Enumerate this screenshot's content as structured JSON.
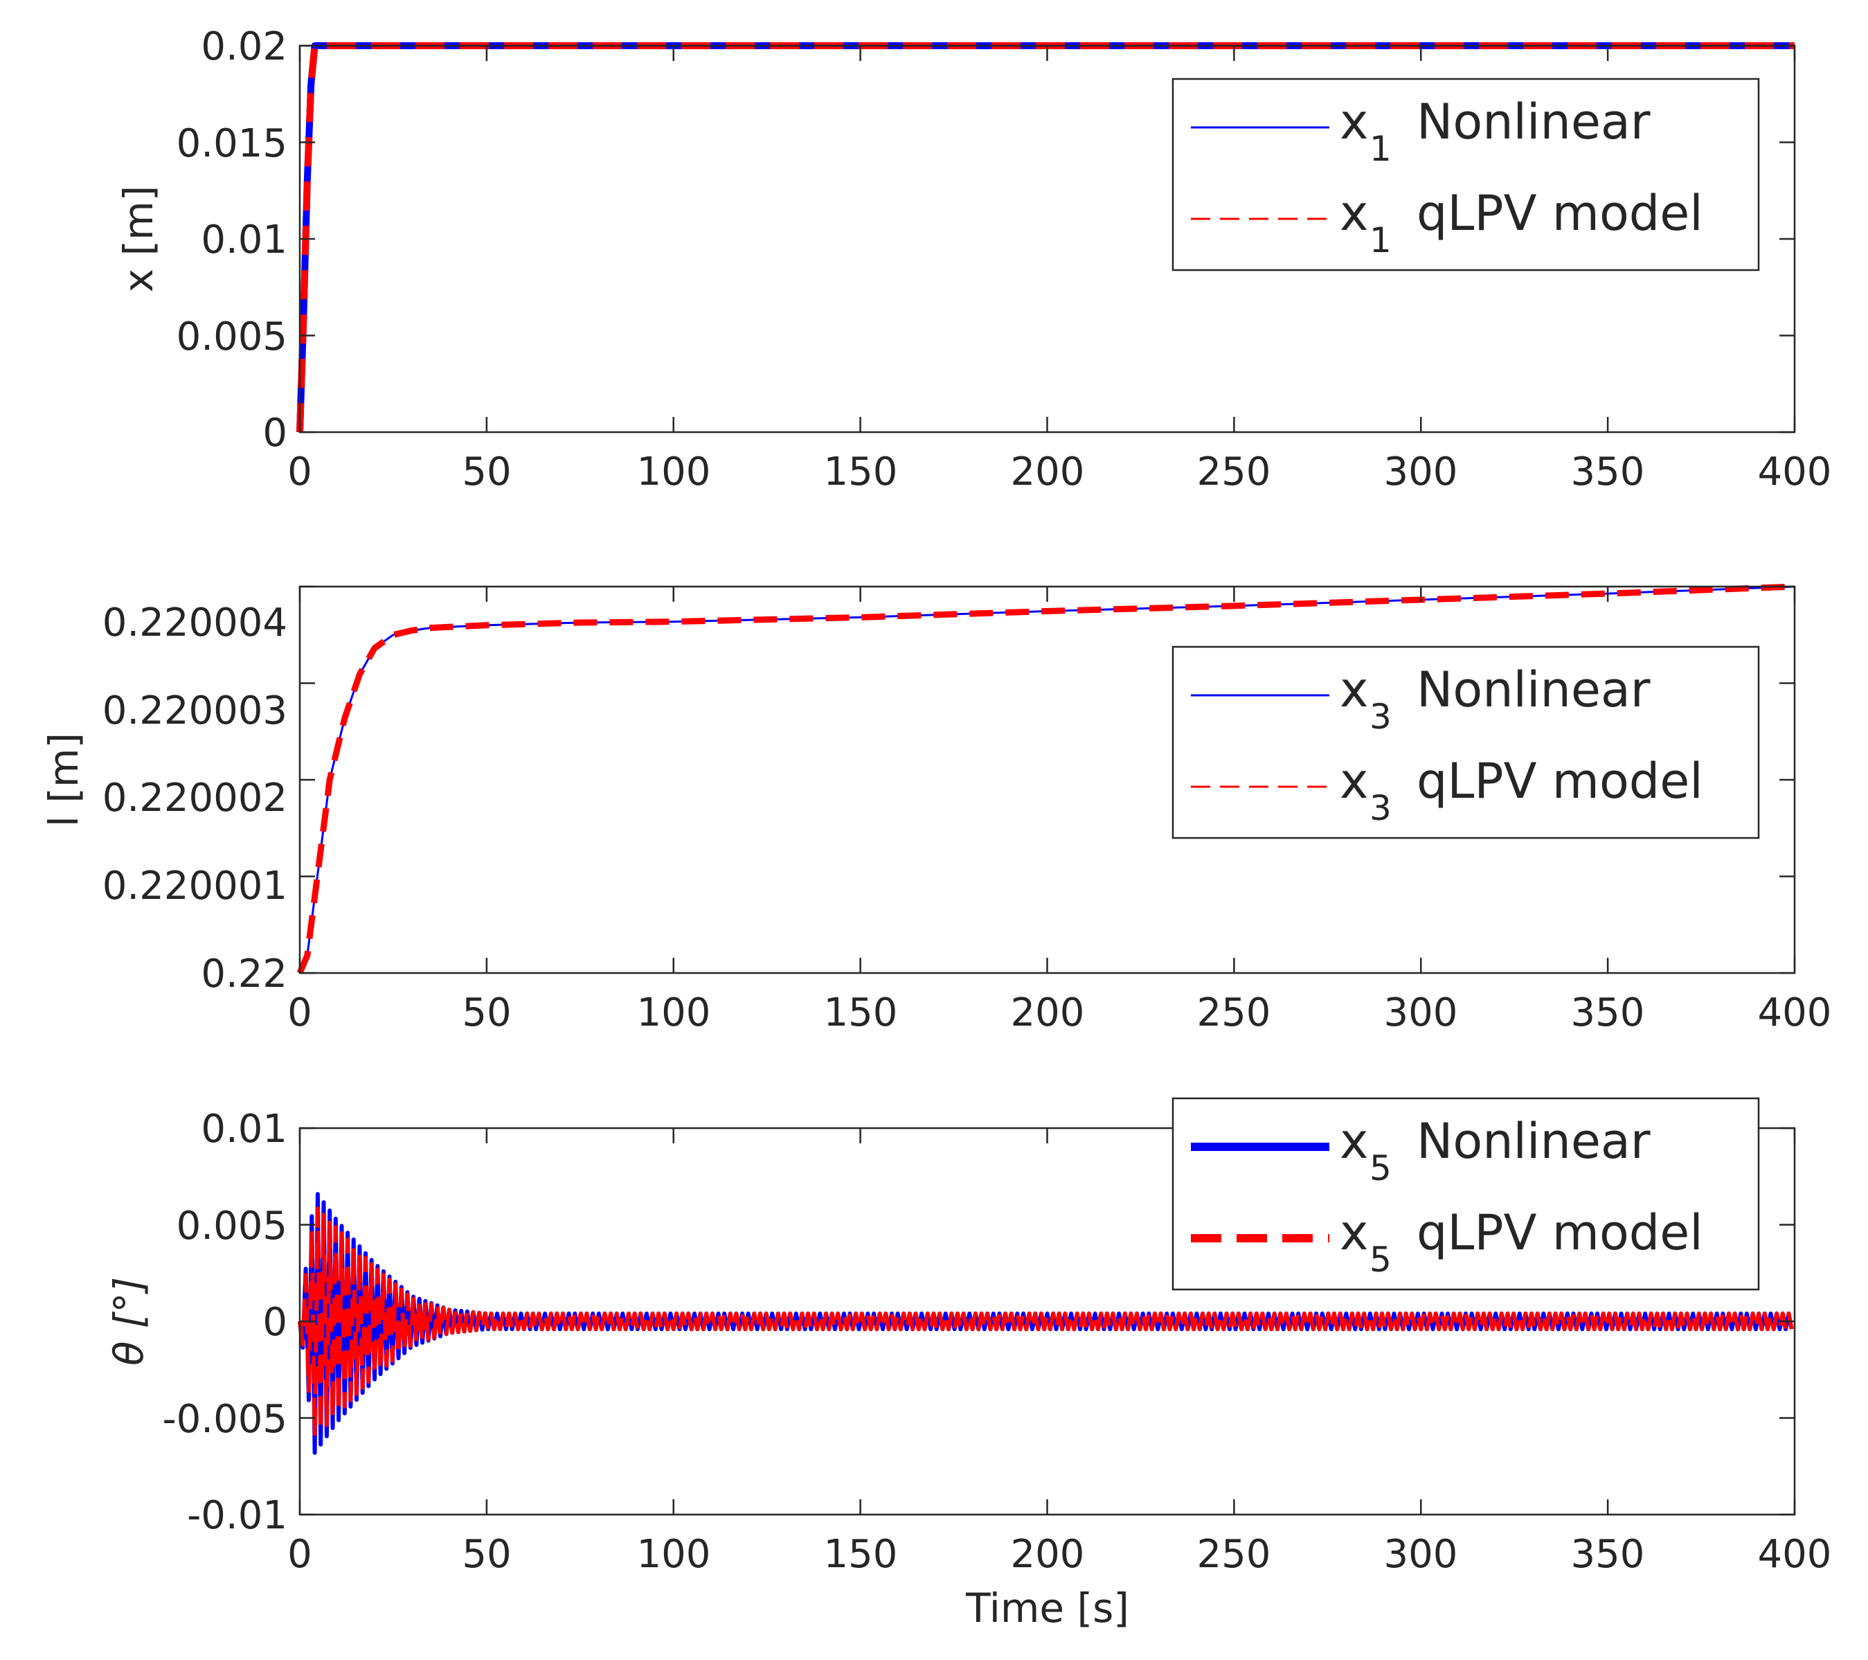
{
  "chart_data": [
    {
      "type": "line",
      "ylabel": "x [m]",
      "xlabel": "",
      "xlim": [
        0,
        400
      ],
      "ylim": [
        0,
        0.02
      ],
      "xticks": [
        "0",
        "50",
        "100",
        "150",
        "200",
        "250",
        "300",
        "350",
        "400"
      ],
      "yticks": [
        "0",
        "0.005",
        "0.01",
        "0.015",
        "0.02"
      ],
      "legend": {
        "position": "top-right",
        "entries": [
          {
            "var": "x",
            "sub": "1",
            "name": "Nonlinear"
          },
          {
            "var": "x",
            "sub": "1",
            "name": "qLPV model"
          }
        ]
      },
      "series": [
        {
          "name": "x1 Nonlinear",
          "color": "#0000ff",
          "style": "solid",
          "x": [
            0,
            1,
            2,
            3,
            4,
            400
          ],
          "y": [
            0,
            0.006,
            0.013,
            0.018,
            0.02,
            0.02
          ]
        },
        {
          "name": "x1 qLPV model",
          "color": "#ff0000",
          "style": "dashed",
          "x": [
            0,
            1,
            2,
            3,
            4,
            400
          ],
          "y": [
            0,
            0.006,
            0.013,
            0.018,
            0.02,
            0.02
          ]
        }
      ]
    },
    {
      "type": "line",
      "ylabel": "l [m]",
      "xlabel": "",
      "xlim": [
        0,
        400
      ],
      "ylim": [
        0.22,
        0.2200044
      ],
      "xticks": [
        "0",
        "50",
        "100",
        "150",
        "200",
        "250",
        "300",
        "350",
        "400"
      ],
      "yticks": [
        "0.22",
        "0.220001",
        "0.220002",
        "0.220003",
        "0.220004"
      ],
      "legend": {
        "position": "center-right",
        "entries": [
          {
            "var": "x",
            "sub": "3",
            "name": "Nonlinear"
          },
          {
            "var": "x",
            "sub": "3",
            "name": "qLPV model"
          }
        ]
      },
      "series": [
        {
          "name": "x3 Nonlinear",
          "color": "#0000ff",
          "style": "solid",
          "x": [
            0,
            2,
            5,
            8,
            12,
            16,
            20,
            25,
            30,
            35,
            40,
            50,
            75,
            100,
            150,
            200,
            250,
            300,
            350,
            400
          ],
          "y": [
            0.22,
            0.2200002,
            0.2200012,
            0.2200022,
            0.2200029,
            0.2200034,
            0.2200037,
            0.22000385,
            0.2200039,
            0.22000393,
            0.22000394,
            0.22000396,
            0.22000399,
            0.220004,
            0.22000405,
            0.22000412,
            0.22000418,
            0.22000425,
            0.22000432,
            0.2200044
          ]
        },
        {
          "name": "x3 qLPV model",
          "color": "#ff0000",
          "style": "dashed",
          "x": [
            0,
            2,
            5,
            8,
            12,
            16,
            20,
            25,
            30,
            35,
            40,
            50,
            75,
            100,
            150,
            200,
            250,
            300,
            350,
            400
          ],
          "y": [
            0.22,
            0.2200002,
            0.2200012,
            0.2200022,
            0.2200029,
            0.2200034,
            0.2200037,
            0.22000385,
            0.2200039,
            0.22000393,
            0.22000394,
            0.22000396,
            0.22000399,
            0.220004,
            0.22000405,
            0.22000412,
            0.22000418,
            0.22000425,
            0.22000432,
            0.2200044
          ]
        }
      ]
    },
    {
      "type": "line",
      "ylabel": "θ [°]",
      "xlabel": "Time [s]",
      "xlim": [
        0,
        400
      ],
      "ylim": [
        -0.01,
        0.01
      ],
      "xticks": [
        "0",
        "50",
        "100",
        "150",
        "200",
        "250",
        "300",
        "350",
        "400"
      ],
      "yticks": [
        "-0.01",
        "-0.005",
        "0",
        "0.005",
        "0.01"
      ],
      "legend": {
        "position": "top-right",
        "entries": [
          {
            "var": "x",
            "sub": "5",
            "name": "Nonlinear"
          },
          {
            "var": "x",
            "sub": "5",
            "name": "qLPV model"
          }
        ]
      },
      "series": [
        {
          "name": "x5 Nonlinear",
          "color": "#0000ff",
          "style": "solid",
          "envelope": {
            "t": [
              0,
              4,
              10,
              20,
              30,
              40,
              50,
              400
            ],
            "amp": [
              0,
              0.0068,
              0.0052,
              0.003,
              0.0013,
              0.0006,
              0.0004,
              0.0004
            ]
          }
        },
        {
          "name": "x5 qLPV model",
          "color": "#ff0000",
          "style": "dashed",
          "envelope": {
            "t": [
              0,
              4,
              10,
              20,
              30,
              40,
              50,
              400
            ],
            "amp": [
              0,
              0.006,
              0.0048,
              0.0028,
              0.0012,
              0.0006,
              0.0004,
              0.0004
            ]
          }
        }
      ]
    }
  ]
}
